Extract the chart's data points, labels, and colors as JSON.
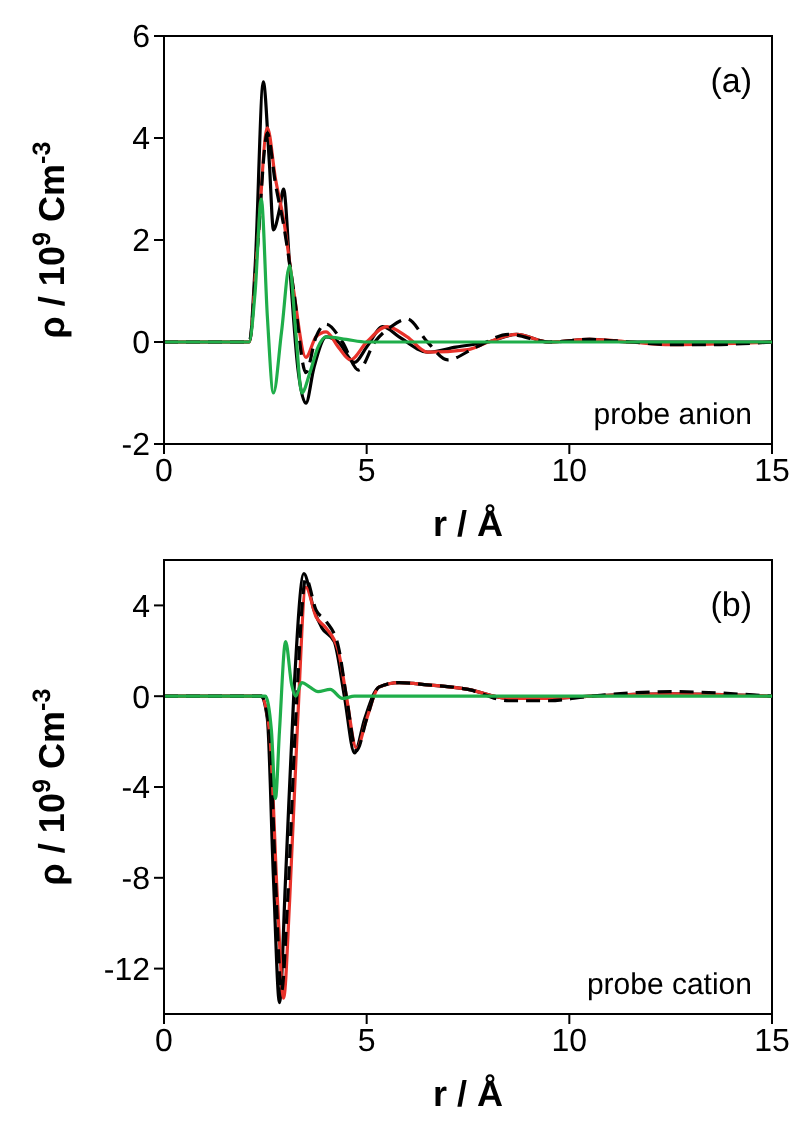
{
  "chart_data": [
    {
      "type": "line",
      "xlabel": "r / Å",
      "ylabel": "ρ / 10$^{9}$ Cm$^{-3}$",
      "annotations": [
        "(a)",
        "probe anion"
      ],
      "xlim": [
        0,
        15
      ],
      "xticks": [
        0,
        5,
        10,
        15
      ],
      "ylim": [
        -2,
        6
      ],
      "yticks": [
        -2,
        0,
        2,
        4,
        6
      ],
      "series": [
        {
          "color": "#000000",
          "line_style": "solid",
          "x": [
            0,
            2.1,
            2.25,
            2.45,
            2.6,
            2.7,
            2.85,
            2.95,
            3.1,
            3.3,
            3.5,
            3.7,
            4.0,
            4.3,
            4.7,
            5.0,
            5.4,
            5.8,
            6.5,
            7.2,
            8.0,
            8.7,
            9.5,
            10.5,
            11.5,
            12.5,
            15
          ],
          "values": [
            0,
            0,
            1.5,
            5.1,
            3.5,
            2.2,
            2.6,
            3.0,
            1.5,
            -0.5,
            -1.2,
            -0.5,
            0.1,
            0,
            -0.4,
            -0.1,
            0.3,
            0.1,
            -0.2,
            -0.1,
            0,
            0.15,
            0,
            0.05,
            0,
            0,
            0
          ]
        },
        {
          "color": "#e8322a",
          "line_style": "solid",
          "x": [
            0,
            2.1,
            2.3,
            2.55,
            2.75,
            2.95,
            3.2,
            3.5,
            3.75,
            4.0,
            4.3,
            4.6,
            5.0,
            5.5,
            6.0,
            6.5,
            7.5,
            8.0,
            8.7,
            9.5,
            10.5,
            11.5,
            12.5,
            15
          ],
          "values": [
            0,
            0,
            1.8,
            4.2,
            3.2,
            2.4,
            1.0,
            -0.3,
            0.1,
            0.2,
            -0.1,
            -0.35,
            0,
            0.3,
            0.1,
            -0.2,
            -0.15,
            0,
            0.15,
            0,
            0.05,
            0,
            -0.05,
            0
          ]
        },
        {
          "color": "#000000",
          "line_style": "dashed",
          "x": [
            0,
            2.1,
            2.3,
            2.55,
            2.75,
            2.95,
            3.2,
            3.5,
            3.75,
            4.0,
            4.4,
            4.8,
            5.2,
            5.6,
            6.0,
            6.5,
            7.0,
            7.7,
            8.5,
            9.5,
            10.5,
            11.5,
            12.5,
            13.5,
            15
          ],
          "values": [
            0,
            0,
            1.8,
            4.1,
            3.1,
            2.3,
            1.0,
            -0.6,
            0.1,
            0.35,
            0,
            -0.55,
            0,
            0.3,
            0.45,
            0,
            -0.35,
            -0.1,
            0.15,
            0,
            0.05,
            0,
            -0.05,
            -0.05,
            0
          ]
        },
        {
          "color": "#1fae4a",
          "line_style": "solid",
          "x": [
            0,
            2.1,
            2.25,
            2.4,
            2.55,
            2.7,
            2.9,
            3.1,
            3.25,
            3.4,
            3.6,
            3.8,
            4.0,
            4.5,
            5,
            15
          ],
          "values": [
            0,
            0,
            1.0,
            2.8,
            0.5,
            -1.0,
            0.2,
            1.5,
            0.2,
            -1.0,
            -0.6,
            -0.1,
            0.1,
            0.05,
            0,
            0
          ]
        }
      ]
    },
    {
      "type": "line",
      "xlabel": "r / Å",
      "ylabel": "ρ / 10$^{9}$ Cm$^{-3}$",
      "annotations": [
        "(b)",
        "probe cation"
      ],
      "xlim": [
        0,
        15
      ],
      "xticks": [
        0,
        5,
        10,
        15
      ],
      "ylim": [
        -14,
        6
      ],
      "yticks": [
        -12,
        -8,
        -4,
        0,
        4
      ],
      "series": [
        {
          "color": "#000000",
          "line_style": "solid",
          "x": [
            0,
            2.4,
            2.55,
            2.7,
            2.85,
            3.0,
            3.2,
            3.45,
            3.7,
            3.9,
            4.2,
            4.45,
            4.7,
            4.95,
            5.3,
            5.8,
            6.5,
            7.5,
            8.5,
            9.5,
            10.5,
            12.5,
            15
          ],
          "values": [
            0,
            0,
            -1,
            -8,
            -13.5,
            -8,
            0,
            5.4,
            3.8,
            3.0,
            2.4,
            0,
            -2.5,
            -1,
            0.4,
            0.6,
            0.5,
            0.3,
            -0.1,
            -0.1,
            0,
            0.1,
            0
          ]
        },
        {
          "color": "#e8322a",
          "line_style": "solid",
          "x": [
            0,
            2.4,
            2.6,
            2.8,
            2.95,
            3.1,
            3.3,
            3.5,
            3.75,
            4.0,
            4.3,
            4.5,
            4.75,
            5.0,
            5.3,
            5.8,
            6.5,
            7.5,
            8.5,
            9.5,
            10.5,
            12.5,
            15
          ],
          "values": [
            0,
            0,
            -1.5,
            -9,
            -13.3,
            -9,
            -1,
            4.8,
            3.5,
            3.0,
            2.0,
            0,
            -2.3,
            -1,
            0.4,
            0.6,
            0.5,
            0.3,
            -0.1,
            -0.1,
            0,
            0.1,
            0
          ]
        },
        {
          "color": "#000000",
          "line_style": "dashed",
          "x": [
            0,
            2.4,
            2.6,
            2.75,
            2.9,
            3.05,
            3.25,
            3.5,
            3.75,
            4.0,
            4.3,
            4.5,
            4.75,
            5.0,
            5.3,
            5.8,
            6.5,
            7.5,
            8.5,
            9.5,
            10.5,
            12.5,
            15
          ],
          "values": [
            0,
            0,
            -1.5,
            -8,
            -13,
            -9,
            -1,
            5.2,
            3.8,
            3.3,
            2.2,
            0,
            -2.4,
            -1,
            0.4,
            0.6,
            0.5,
            0.3,
            -0.2,
            -0.2,
            0,
            0.2,
            0
          ]
        },
        {
          "color": "#1fae4a",
          "line_style": "solid",
          "x": [
            0,
            2.5,
            2.65,
            2.75,
            2.85,
            3.0,
            3.15,
            3.25,
            3.4,
            3.6,
            3.8,
            4.1,
            4.4,
            4.7,
            15
          ],
          "values": [
            0,
            0,
            -1.5,
            -4.5,
            -1.5,
            2.4,
            0.5,
            0,
            0.6,
            0.4,
            0.2,
            0.3,
            -0.1,
            0,
            0
          ]
        }
      ]
    }
  ]
}
